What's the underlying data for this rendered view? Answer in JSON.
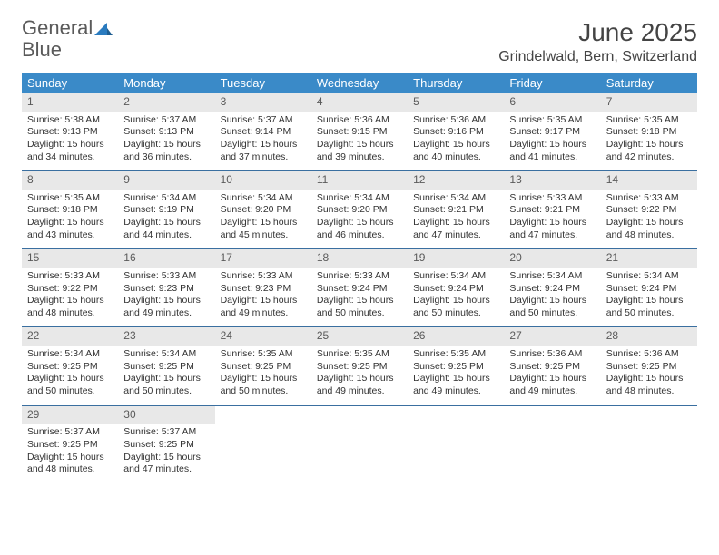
{
  "brand": {
    "part1": "General",
    "part2": "Blue"
  },
  "title": "June 2025",
  "location": "Grindelwald, Bern, Switzerland",
  "colors": {
    "header_bg": "#3a8ac8",
    "header_text": "#ffffff",
    "row_border": "#3a6fa0",
    "daynum_bg": "#e8e8e8",
    "brand_gray": "#5a5a5a",
    "brand_blue": "#2a7bbf"
  },
  "weekdays": [
    "Sunday",
    "Monday",
    "Tuesday",
    "Wednesday",
    "Thursday",
    "Friday",
    "Saturday"
  ],
  "days": [
    {
      "n": 1,
      "sunrise": "5:38 AM",
      "sunset": "9:13 PM",
      "daylight": "15 hours and 34 minutes."
    },
    {
      "n": 2,
      "sunrise": "5:37 AM",
      "sunset": "9:13 PM",
      "daylight": "15 hours and 36 minutes."
    },
    {
      "n": 3,
      "sunrise": "5:37 AM",
      "sunset": "9:14 PM",
      "daylight": "15 hours and 37 minutes."
    },
    {
      "n": 4,
      "sunrise": "5:36 AM",
      "sunset": "9:15 PM",
      "daylight": "15 hours and 39 minutes."
    },
    {
      "n": 5,
      "sunrise": "5:36 AM",
      "sunset": "9:16 PM",
      "daylight": "15 hours and 40 minutes."
    },
    {
      "n": 6,
      "sunrise": "5:35 AM",
      "sunset": "9:17 PM",
      "daylight": "15 hours and 41 minutes."
    },
    {
      "n": 7,
      "sunrise": "5:35 AM",
      "sunset": "9:18 PM",
      "daylight": "15 hours and 42 minutes."
    },
    {
      "n": 8,
      "sunrise": "5:35 AM",
      "sunset": "9:18 PM",
      "daylight": "15 hours and 43 minutes."
    },
    {
      "n": 9,
      "sunrise": "5:34 AM",
      "sunset": "9:19 PM",
      "daylight": "15 hours and 44 minutes."
    },
    {
      "n": 10,
      "sunrise": "5:34 AM",
      "sunset": "9:20 PM",
      "daylight": "15 hours and 45 minutes."
    },
    {
      "n": 11,
      "sunrise": "5:34 AM",
      "sunset": "9:20 PM",
      "daylight": "15 hours and 46 minutes."
    },
    {
      "n": 12,
      "sunrise": "5:34 AM",
      "sunset": "9:21 PM",
      "daylight": "15 hours and 47 minutes."
    },
    {
      "n": 13,
      "sunrise": "5:33 AM",
      "sunset": "9:21 PM",
      "daylight": "15 hours and 47 minutes."
    },
    {
      "n": 14,
      "sunrise": "5:33 AM",
      "sunset": "9:22 PM",
      "daylight": "15 hours and 48 minutes."
    },
    {
      "n": 15,
      "sunrise": "5:33 AM",
      "sunset": "9:22 PM",
      "daylight": "15 hours and 48 minutes."
    },
    {
      "n": 16,
      "sunrise": "5:33 AM",
      "sunset": "9:23 PM",
      "daylight": "15 hours and 49 minutes."
    },
    {
      "n": 17,
      "sunrise": "5:33 AM",
      "sunset": "9:23 PM",
      "daylight": "15 hours and 49 minutes."
    },
    {
      "n": 18,
      "sunrise": "5:33 AM",
      "sunset": "9:24 PM",
      "daylight": "15 hours and 50 minutes."
    },
    {
      "n": 19,
      "sunrise": "5:34 AM",
      "sunset": "9:24 PM",
      "daylight": "15 hours and 50 minutes."
    },
    {
      "n": 20,
      "sunrise": "5:34 AM",
      "sunset": "9:24 PM",
      "daylight": "15 hours and 50 minutes."
    },
    {
      "n": 21,
      "sunrise": "5:34 AM",
      "sunset": "9:24 PM",
      "daylight": "15 hours and 50 minutes."
    },
    {
      "n": 22,
      "sunrise": "5:34 AM",
      "sunset": "9:25 PM",
      "daylight": "15 hours and 50 minutes."
    },
    {
      "n": 23,
      "sunrise": "5:34 AM",
      "sunset": "9:25 PM",
      "daylight": "15 hours and 50 minutes."
    },
    {
      "n": 24,
      "sunrise": "5:35 AM",
      "sunset": "9:25 PM",
      "daylight": "15 hours and 50 minutes."
    },
    {
      "n": 25,
      "sunrise": "5:35 AM",
      "sunset": "9:25 PM",
      "daylight": "15 hours and 49 minutes."
    },
    {
      "n": 26,
      "sunrise": "5:35 AM",
      "sunset": "9:25 PM",
      "daylight": "15 hours and 49 minutes."
    },
    {
      "n": 27,
      "sunrise": "5:36 AM",
      "sunset": "9:25 PM",
      "daylight": "15 hours and 49 minutes."
    },
    {
      "n": 28,
      "sunrise": "5:36 AM",
      "sunset": "9:25 PM",
      "daylight": "15 hours and 48 minutes."
    },
    {
      "n": 29,
      "sunrise": "5:37 AM",
      "sunset": "9:25 PM",
      "daylight": "15 hours and 48 minutes."
    },
    {
      "n": 30,
      "sunrise": "5:37 AM",
      "sunset": "9:25 PM",
      "daylight": "15 hours and 47 minutes."
    }
  ],
  "labels": {
    "sunrise": "Sunrise: ",
    "sunset": "Sunset: ",
    "daylight": "Daylight: "
  },
  "layout": {
    "cols": 7,
    "rows": 5,
    "first_weekday_offset": 0
  }
}
